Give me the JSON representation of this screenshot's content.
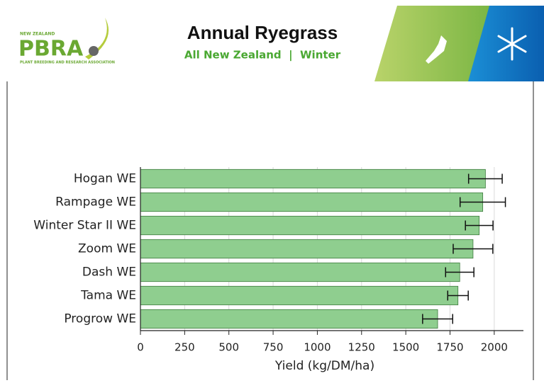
{
  "logo": {
    "top": "NEW ZEALAND",
    "name": "PBRA",
    "bottom": "PLANT BREEDING AND RESEARCH ASSOCIATION"
  },
  "chart_data": {
    "type": "bar",
    "orientation": "horizontal",
    "title": "Annual Ryegrass",
    "subtitle": "All New Zealand  |  Winter",
    "categories": [
      "Hogan WE",
      "Rampage WE",
      "Winter Star II WE",
      "Zoom WE",
      "Dash WE",
      "Tama WE",
      "Progrow WE"
    ],
    "values": [
      1950,
      1935,
      1915,
      1880,
      1805,
      1795,
      1680
    ],
    "errors": [
      95,
      128,
      78,
      112,
      80,
      58,
      85
    ],
    "color": "#8fce8f",
    "xlim": [
      0,
      2165
    ],
    "xticks": [
      0,
      250,
      500,
      750,
      1000,
      1250,
      1500,
      1750,
      2000
    ],
    "xlabel": "Yield (kg/DM/ha)",
    "grid": true
  }
}
